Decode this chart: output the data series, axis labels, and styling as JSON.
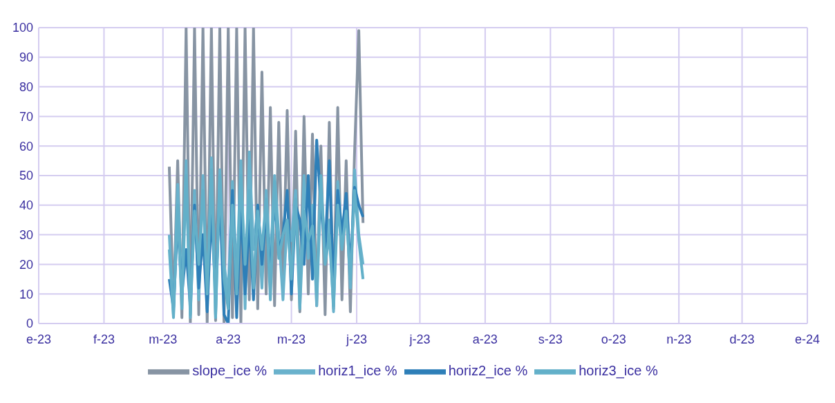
{
  "chart_data": {
    "type": "line",
    "x": [
      "2023-03-04",
      "2023-03-06",
      "2023-03-08",
      "2023-03-10",
      "2023-03-12",
      "2023-03-14",
      "2023-03-16",
      "2023-03-18",
      "2023-03-20",
      "2023-03-22",
      "2023-03-24",
      "2023-03-26",
      "2023-03-28",
      "2023-03-30",
      "2023-04-01",
      "2023-04-03",
      "2023-04-05",
      "2023-04-07",
      "2023-04-09",
      "2023-04-11",
      "2023-04-13",
      "2023-04-15",
      "2023-04-17",
      "2023-04-19",
      "2023-04-21",
      "2023-04-23",
      "2023-04-25",
      "2023-04-27",
      "2023-04-29",
      "2023-05-01",
      "2023-05-03",
      "2023-05-05",
      "2023-05-07",
      "2023-05-09",
      "2023-05-11",
      "2023-05-13",
      "2023-05-15",
      "2023-05-17",
      "2023-05-19",
      "2023-05-21",
      "2023-05-23",
      "2023-05-25",
      "2023-05-27",
      "2023-05-29",
      "2023-05-31",
      "2023-06-02",
      "2023-06-04"
    ],
    "series": [
      {
        "name": "slope_ice %",
        "color": "#8794a3",
        "values": [
          53,
          5,
          55,
          2,
          100,
          0,
          100,
          3,
          100,
          0,
          100,
          1,
          100,
          0,
          100,
          2,
          100,
          0,
          100,
          8,
          100,
          5,
          85,
          10,
          73,
          6,
          68,
          12,
          72,
          8,
          65,
          4,
          70,
          10,
          64,
          6,
          60,
          3,
          68,
          5,
          73,
          8,
          55,
          4,
          58,
          99,
          34
        ]
      },
      {
        "name": "horiz1_ice %",
        "color": "#6ab2cc",
        "values": [
          30,
          3,
          47,
          10,
          55,
          2,
          45,
          8,
          50,
          5,
          56,
          3,
          52,
          20,
          10,
          48,
          15,
          55,
          5,
          58,
          25,
          40,
          12,
          45,
          20,
          50,
          30,
          8,
          35,
          28,
          45,
          10,
          50,
          22,
          40,
          6,
          47,
          25,
          35,
          4,
          48,
          30,
          42,
          12,
          52,
          30,
          20
        ]
      },
      {
        "name": "horiz2_ice %",
        "color": "#2e7fb8",
        "values": [
          15,
          5,
          35,
          10,
          25,
          6,
          40,
          12,
          30,
          4,
          38,
          10,
          44,
          3,
          0,
          45,
          2,
          40,
          10,
          35,
          8,
          40,
          20,
          38,
          15,
          42,
          25,
          30,
          45,
          10,
          40,
          35,
          20,
          50,
          15,
          62,
          40,
          25,
          55,
          12,
          45,
          30,
          44,
          18,
          46,
          40,
          36
        ]
      },
      {
        "name": "horiz3_ice %",
        "color": "#63b0c9",
        "values": [
          25,
          2,
          40,
          5,
          50,
          3,
          38,
          20,
          45,
          10,
          52,
          2,
          50,
          15,
          5,
          40,
          10,
          50,
          20,
          45,
          12,
          38,
          25,
          42,
          8,
          48,
          22,
          30,
          35,
          15,
          42,
          5,
          38,
          28,
          33,
          10,
          50,
          20,
          30,
          6,
          40,
          25,
          38,
          15,
          45,
          28,
          15
        ]
      }
    ],
    "xlim": [
      "2023-01-01",
      "2024-01-01"
    ],
    "xticks": [
      {
        "value": "2023-01-01",
        "label": "e-23"
      },
      {
        "value": "2023-02-01",
        "label": "f-23"
      },
      {
        "value": "2023-03-01",
        "label": "m-23"
      },
      {
        "value": "2023-04-01",
        "label": "a-23"
      },
      {
        "value": "2023-05-01",
        "label": "m-23"
      },
      {
        "value": "2023-06-01",
        "label": "j-23"
      },
      {
        "value": "2023-07-01",
        "label": "j-23"
      },
      {
        "value": "2023-08-01",
        "label": "a-23"
      },
      {
        "value": "2023-09-01",
        "label": "s-23"
      },
      {
        "value": "2023-10-01",
        "label": "o-23"
      },
      {
        "value": "2023-11-01",
        "label": "n-23"
      },
      {
        "value": "2023-12-01",
        "label": "d-23"
      },
      {
        "value": "2024-01-01",
        "label": "e-24"
      }
    ],
    "ylim": [
      0,
      100
    ],
    "yticks": [
      0,
      10,
      20,
      30,
      40,
      50,
      60,
      70,
      80,
      90,
      100
    ],
    "grid": true,
    "legend": "bottom",
    "marker": "none",
    "line_style": "solid"
  }
}
